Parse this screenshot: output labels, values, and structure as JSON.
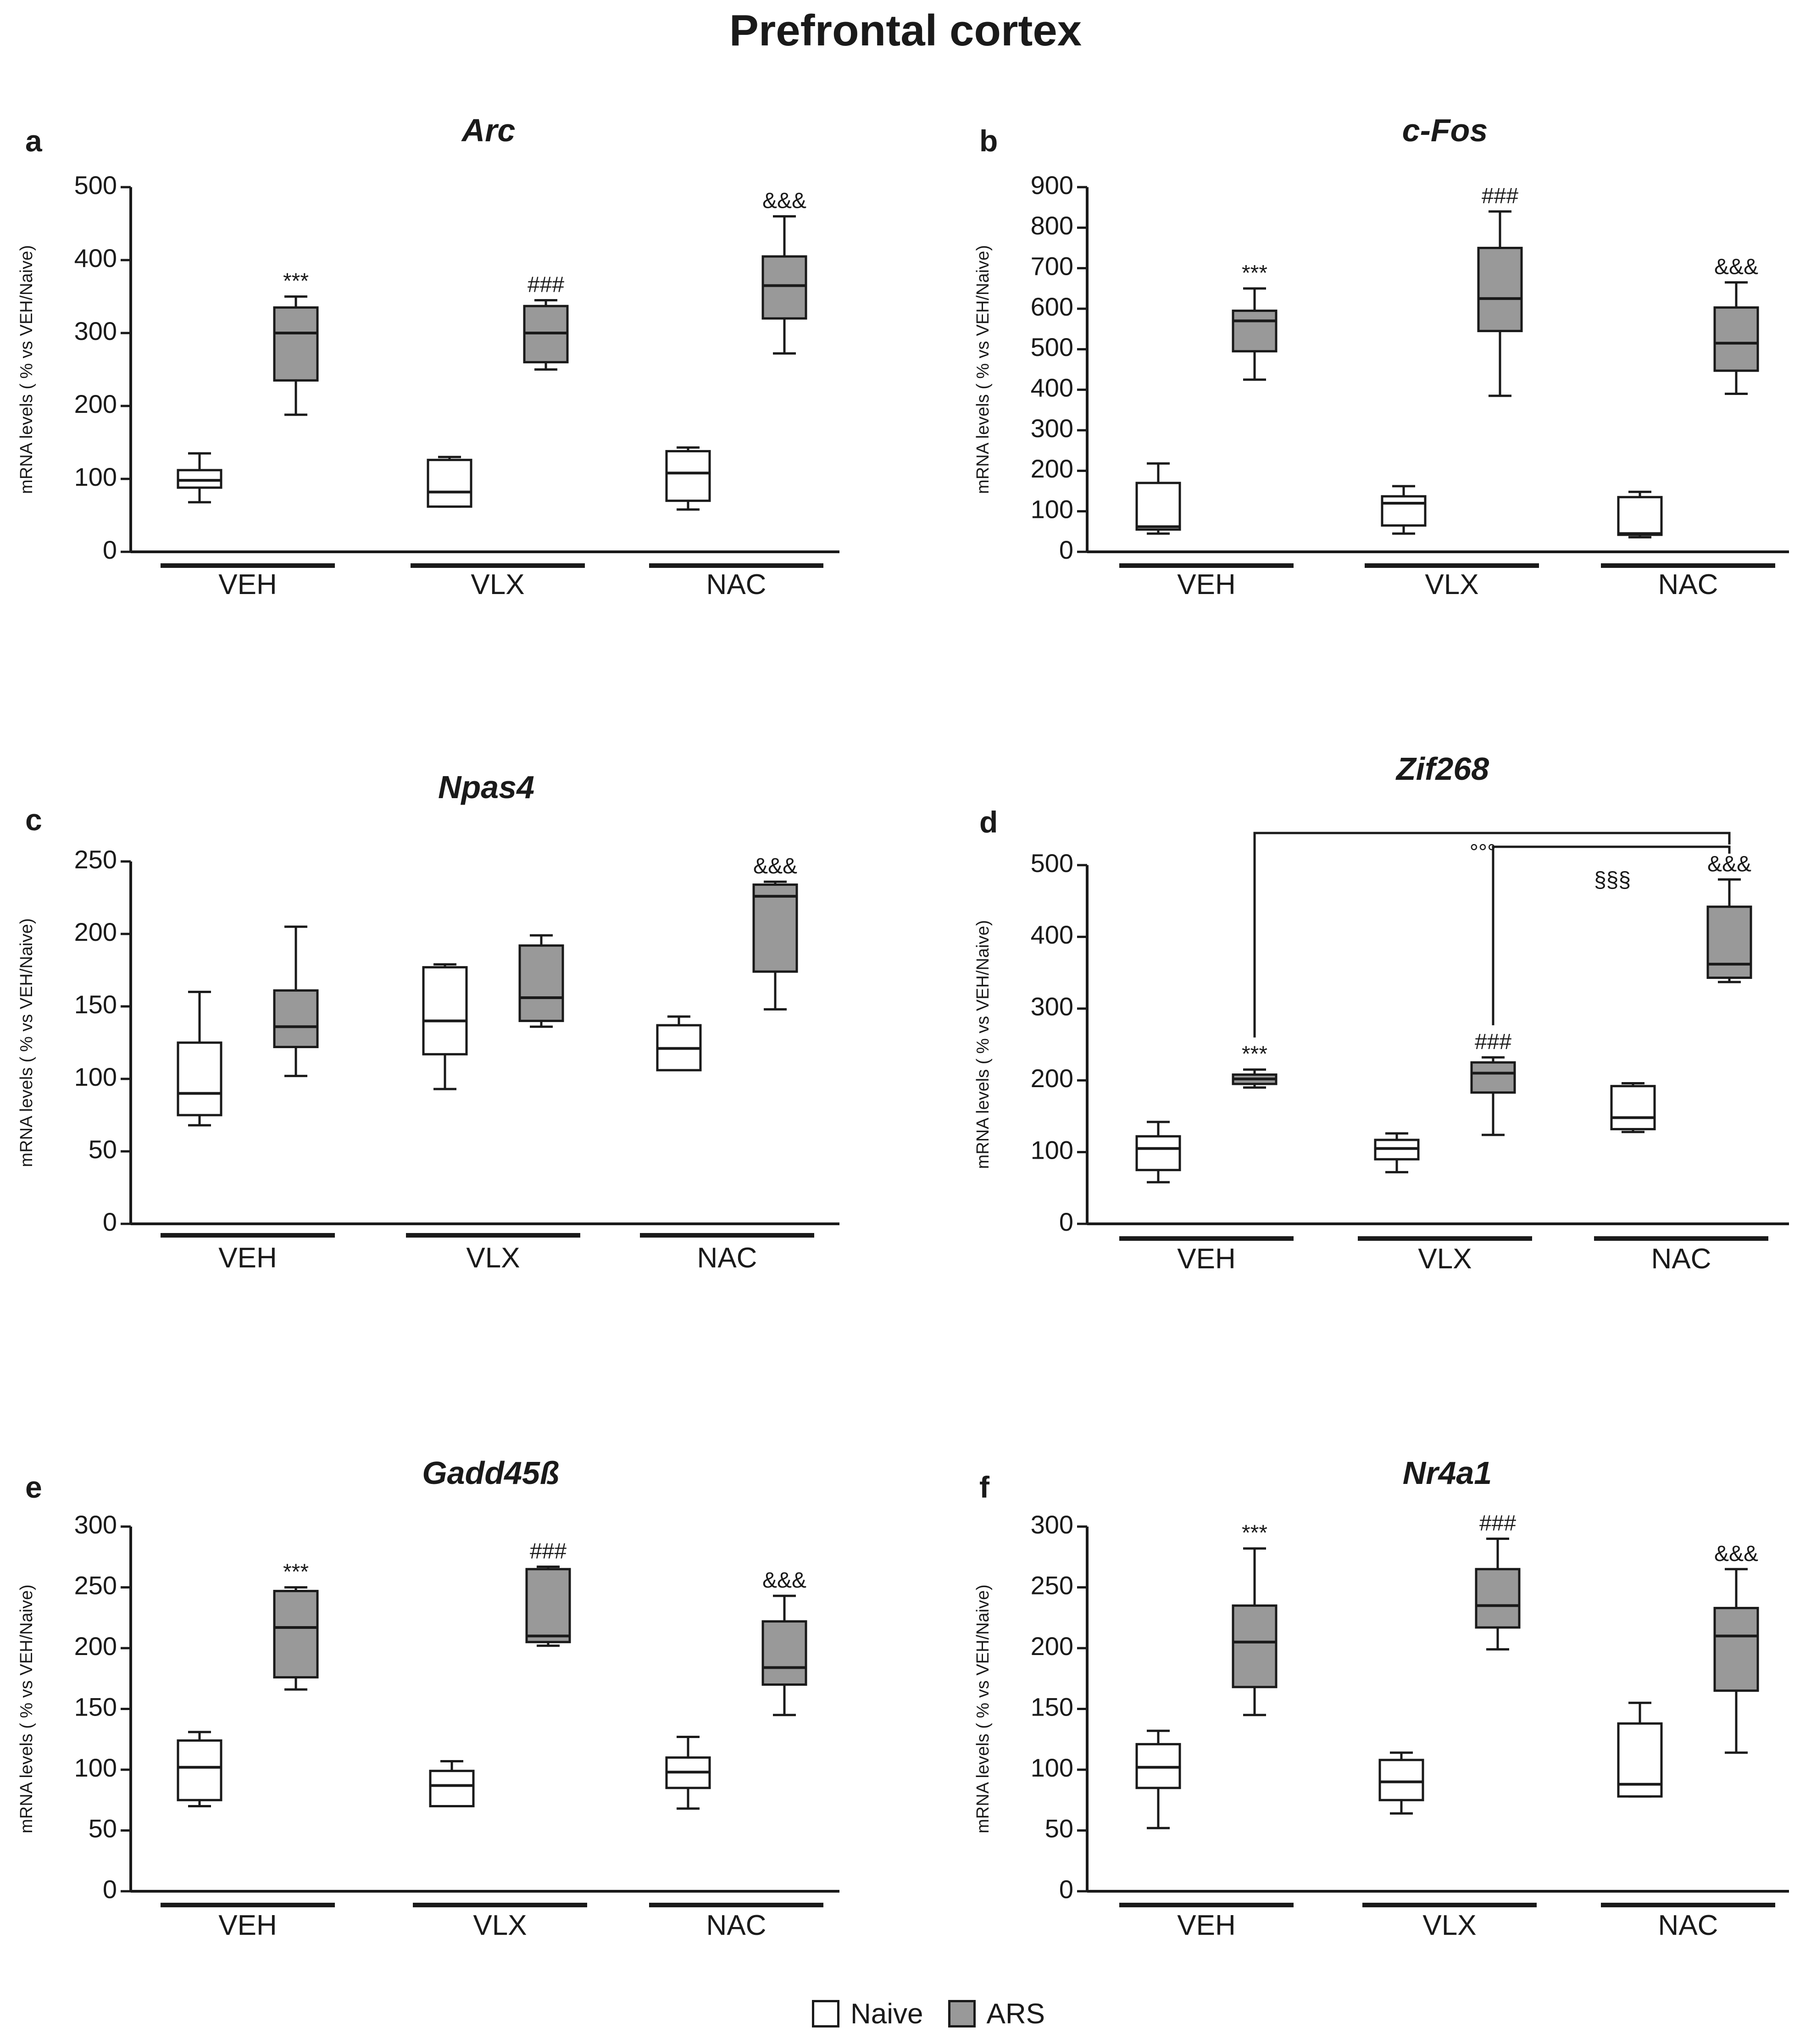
{
  "figure": {
    "title": "Prefrontal cortex"
  },
  "legend": [
    {
      "label": "Naive",
      "color": "#ffffff"
    },
    {
      "label": "ARS",
      "color": "#999999"
    }
  ],
  "chart_data": [
    {
      "type": "box",
      "letter": "a",
      "title": "Arc",
      "ylabel": "mRNA levels ( % vs VEH/Naive)",
      "ylim": [
        0,
        500
      ],
      "yticks": [
        0,
        100,
        200,
        300,
        400,
        500
      ],
      "groups": [
        "VEH",
        "VLX",
        "NAC"
      ],
      "series": [
        {
          "name": "Naive",
          "boxes": [
            {
              "group": "VEH",
              "min": 68,
              "q1": 88,
              "median": 98,
              "q3": 112,
              "max": 135
            },
            {
              "group": "VLX",
              "min": 62,
              "q1": 62,
              "median": 82,
              "q3": 126,
              "max": 130
            },
            {
              "group": "NAC",
              "min": 58,
              "q1": 70,
              "median": 108,
              "q3": 138,
              "max": 143
            }
          ]
        },
        {
          "name": "ARS",
          "boxes": [
            {
              "group": "VEH",
              "min": 188,
              "q1": 235,
              "median": 300,
              "q3": 335,
              "max": 350,
              "sig": "***"
            },
            {
              "group": "VLX",
              "min": 250,
              "q1": 260,
              "median": 300,
              "q3": 337,
              "max": 345,
              "sig": "###"
            },
            {
              "group": "NAC",
              "min": 272,
              "q1": 320,
              "median": 365,
              "q3": 405,
              "max": 460,
              "sig": "&&&"
            }
          ]
        }
      ]
    },
    {
      "type": "box",
      "letter": "b",
      "title": "c-Fos",
      "ylabel": "mRNA levels ( % vs VEH/Naive)",
      "ylim": [
        0,
        900
      ],
      "yticks": [
        0,
        100,
        200,
        300,
        400,
        500,
        600,
        700,
        800,
        900
      ],
      "groups": [
        "VEH",
        "VLX",
        "NAC"
      ],
      "series": [
        {
          "name": "Naive",
          "boxes": [
            {
              "group": "VEH",
              "min": 45,
              "q1": 55,
              "median": 62,
              "q3": 170,
              "max": 218
            },
            {
              "group": "VLX",
              "min": 45,
              "q1": 65,
              "median": 120,
              "q3": 137,
              "max": 162
            },
            {
              "group": "NAC",
              "min": 36,
              "q1": 42,
              "median": 45,
              "q3": 135,
              "max": 148
            }
          ]
        },
        {
          "name": "ARS",
          "boxes": [
            {
              "group": "VEH",
              "min": 425,
              "q1": 495,
              "median": 570,
              "q3": 595,
              "max": 650,
              "sig": "***"
            },
            {
              "group": "VLX",
              "min": 385,
              "q1": 545,
              "median": 625,
              "q3": 750,
              "max": 840,
              "sig": "###"
            },
            {
              "group": "NAC",
              "min": 390,
              "q1": 447,
              "median": 515,
              "q3": 603,
              "max": 665,
              "sig": "&&&"
            }
          ]
        }
      ]
    },
    {
      "type": "box",
      "letter": "c",
      "title": "Npas4",
      "ylabel": "mRNA levels ( % vs VEH/Naive)",
      "ylim": [
        0,
        250
      ],
      "yticks": [
        0,
        50,
        100,
        150,
        200,
        250
      ],
      "groups": [
        "VEH",
        "VLX",
        "NAC"
      ],
      "series": [
        {
          "name": "Naive",
          "boxes": [
            {
              "group": "VEH",
              "min": 68,
              "q1": 75,
              "median": 90,
              "q3": 125,
              "max": 160
            },
            {
              "group": "VLX",
              "min": 93,
              "q1": 117,
              "median": 140,
              "q3": 177,
              "max": 179
            },
            {
              "group": "NAC",
              "min": 106,
              "q1": 106,
              "median": 121,
              "q3": 137,
              "max": 143
            }
          ]
        },
        {
          "name": "ARS",
          "boxes": [
            {
              "group": "VEH",
              "min": 102,
              "q1": 122,
              "median": 136,
              "q3": 161,
              "max": 205
            },
            {
              "group": "VLX",
              "min": 136,
              "q1": 140,
              "median": 156,
              "q3": 192,
              "max": 199
            },
            {
              "group": "NAC",
              "min": 148,
              "q1": 174,
              "median": 226,
              "q3": 234,
              "max": 236,
              "sig": "&&&"
            }
          ]
        }
      ]
    },
    {
      "type": "box",
      "letter": "d",
      "title": "Zif268",
      "ylabel": "mRNA levels ( % vs VEH/Naive)",
      "ylim": [
        0,
        500
      ],
      "yticks": [
        0,
        100,
        200,
        300,
        400,
        500
      ],
      "groups": [
        "VEH",
        "VLX",
        "NAC"
      ],
      "series": [
        {
          "name": "Naive",
          "boxes": [
            {
              "group": "VEH",
              "min": 58,
              "q1": 75,
              "median": 105,
              "q3": 122,
              "max": 142
            },
            {
              "group": "VLX",
              "min": 72,
              "q1": 90,
              "median": 105,
              "q3": 117,
              "max": 126
            },
            {
              "group": "NAC",
              "min": 128,
              "q1": 132,
              "median": 148,
              "q3": 192,
              "max": 196
            }
          ]
        },
        {
          "name": "ARS",
          "boxes": [
            {
              "group": "VEH",
              "min": 190,
              "q1": 195,
              "median": 202,
              "q3": 208,
              "max": 215,
              "sig": "***"
            },
            {
              "group": "VLX",
              "min": 124,
              "q1": 183,
              "median": 210,
              "q3": 225,
              "max": 232,
              "sig": "###"
            },
            {
              "group": "NAC",
              "min": 337,
              "q1": 343,
              "median": 362,
              "q3": 442,
              "max": 480,
              "sig": "&&&"
            }
          ]
        }
      ],
      "comparisons": [
        {
          "from": "VEH",
          "to": "NAC",
          "label": "°°°"
        },
        {
          "from": "VLX",
          "to": "NAC",
          "label": "§§§"
        }
      ]
    },
    {
      "type": "box",
      "letter": "e",
      "title": "Gadd45ß",
      "ylabel": "mRNA levels ( % vs VEH/Naive)",
      "ylim": [
        0,
        300
      ],
      "yticks": [
        0,
        50,
        100,
        150,
        200,
        250,
        300
      ],
      "groups": [
        "VEH",
        "VLX",
        "NAC"
      ],
      "series": [
        {
          "name": "Naive",
          "boxes": [
            {
              "group": "VEH",
              "min": 70,
              "q1": 75,
              "median": 102,
              "q3": 124,
              "max": 131
            },
            {
              "group": "VLX",
              "min": 70,
              "q1": 70,
              "median": 87,
              "q3": 99,
              "max": 107
            },
            {
              "group": "NAC",
              "min": 68,
              "q1": 85,
              "median": 98,
              "q3": 110,
              "max": 127
            }
          ]
        },
        {
          "name": "ARS",
          "boxes": [
            {
              "group": "VEH",
              "min": 166,
              "q1": 176,
              "median": 217,
              "q3": 247,
              "max": 250,
              "sig": "***"
            },
            {
              "group": "VLX",
              "min": 202,
              "q1": 205,
              "median": 210,
              "q3": 265,
              "max": 267,
              "sig": "###"
            },
            {
              "group": "NAC",
              "min": 145,
              "q1": 170,
              "median": 184,
              "q3": 222,
              "max": 243,
              "sig": "&&&"
            }
          ]
        }
      ]
    },
    {
      "type": "box",
      "letter": "f",
      "title": "Nr4a1",
      "ylabel": "mRNA levels ( % vs VEH/Naive)",
      "ylim": [
        0,
        300
      ],
      "yticks": [
        0,
        50,
        100,
        150,
        200,
        250,
        300
      ],
      "groups": [
        "VEH",
        "VLX",
        "NAC"
      ],
      "series": [
        {
          "name": "Naive",
          "boxes": [
            {
              "group": "VEH",
              "min": 52,
              "q1": 85,
              "median": 102,
              "q3": 121,
              "max": 132
            },
            {
              "group": "VLX",
              "min": 64,
              "q1": 75,
              "median": 90,
              "q3": 108,
              "max": 114
            },
            {
              "group": "NAC",
              "min": 78,
              "q1": 78,
              "median": 88,
              "q3": 138,
              "max": 155
            }
          ]
        },
        {
          "name": "ARS",
          "boxes": [
            {
              "group": "VEH",
              "min": 145,
              "q1": 168,
              "median": 205,
              "q3": 235,
              "max": 282,
              "sig": "***"
            },
            {
              "group": "VLX",
              "min": 199,
              "q1": 217,
              "median": 235,
              "q3": 265,
              "max": 290,
              "sig": "###"
            },
            {
              "group": "NAC",
              "min": 114,
              "q1": 165,
              "median": 210,
              "q3": 233,
              "max": 265,
              "sig": "&&&"
            }
          ]
        }
      ]
    }
  ]
}
